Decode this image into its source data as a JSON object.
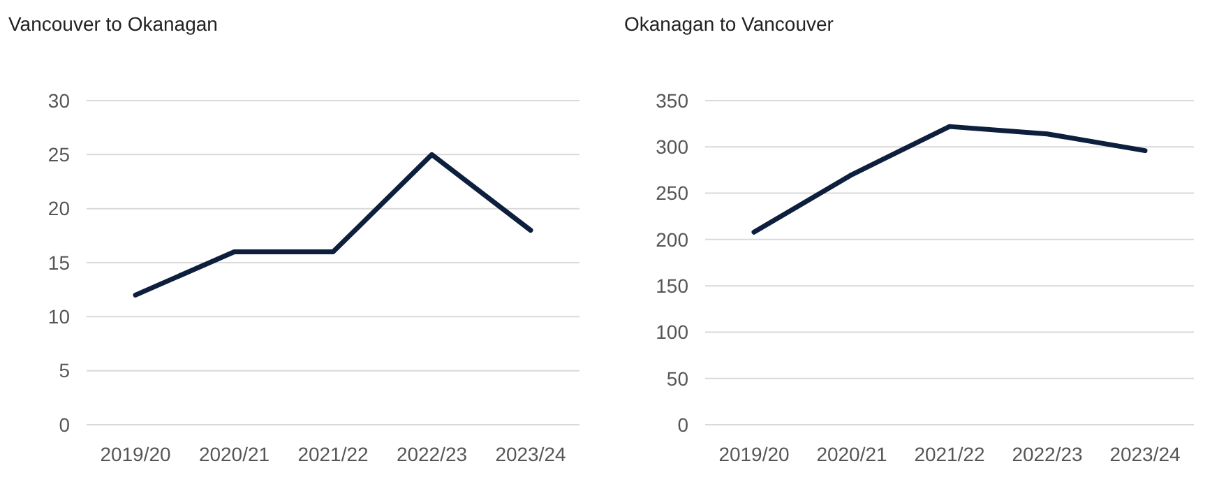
{
  "chart_data": [
    {
      "type": "line",
      "title": "Vancouver to Okanagan",
      "categories": [
        "2019/20",
        "2020/21",
        "2021/22",
        "2022/23",
        "2023/24"
      ],
      "series": [
        {
          "color": "#0d1f3c",
          "values": [
            12,
            16,
            16,
            25,
            18
          ]
        }
      ],
      "ylim": [
        0,
        30
      ],
      "yticks": [
        0,
        5,
        10,
        15,
        20,
        25,
        30
      ],
      "grid": "y"
    },
    {
      "type": "line",
      "title": "Okanagan to Vancouver",
      "categories": [
        "2019/20",
        "2020/21",
        "2021/22",
        "2022/23",
        "2023/24"
      ],
      "series": [
        {
          "color": "#0d1f3c",
          "values": [
            208,
            270,
            322,
            314,
            296
          ]
        }
      ],
      "ylim": [
        0,
        350
      ],
      "yticks": [
        0,
        50,
        100,
        150,
        200,
        250,
        300,
        350
      ],
      "grid": "y"
    }
  ]
}
